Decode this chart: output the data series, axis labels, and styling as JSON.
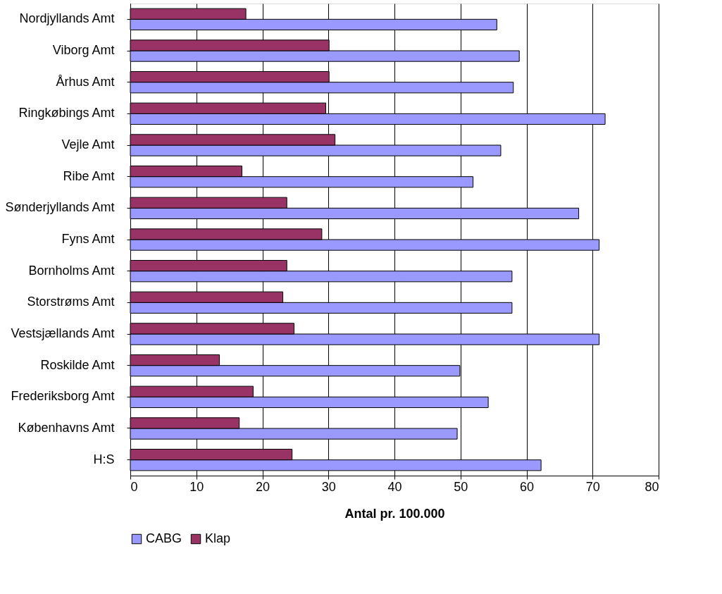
{
  "chart_data": {
    "type": "bar",
    "orientation": "horizontal",
    "xlabel": "Antal pr. 100.000",
    "categories": [
      "Nordjyllands Amt",
      "Viborg Amt",
      "Århus Amt",
      "Ringkøbings Amt",
      "Vejle Amt",
      "Ribe Amt",
      "Sønderjyllands Amt",
      "Fyns Amt",
      "Bornholms Amt",
      "Storstrøms Amt",
      "Vestsjællands Amt",
      "Roskilde Amt",
      "Frederiksborg Amt",
      "Københavns Amt",
      "H:S"
    ],
    "series": [
      {
        "name": "CABG",
        "color": "#9999ff",
        "values": [
          55.5,
          58.9,
          58.0,
          71.9,
          56.1,
          51.9,
          67.9,
          71.0,
          57.8,
          57.8,
          71.0,
          49.9,
          54.2,
          49.5,
          62.2
        ]
      },
      {
        "name": "Klap",
        "color": "#993366",
        "values": [
          17.5,
          30.1,
          30.1,
          29.6,
          31.0,
          16.9,
          23.7,
          29.0,
          23.7,
          23.1,
          24.8,
          13.5,
          18.6,
          16.5,
          24.5
        ]
      }
    ],
    "xlim": [
      0,
      80
    ],
    "xticks": [
      0,
      10,
      20,
      30,
      40,
      50,
      60,
      70,
      80
    ],
    "grid": "x",
    "legend": "bottom"
  }
}
